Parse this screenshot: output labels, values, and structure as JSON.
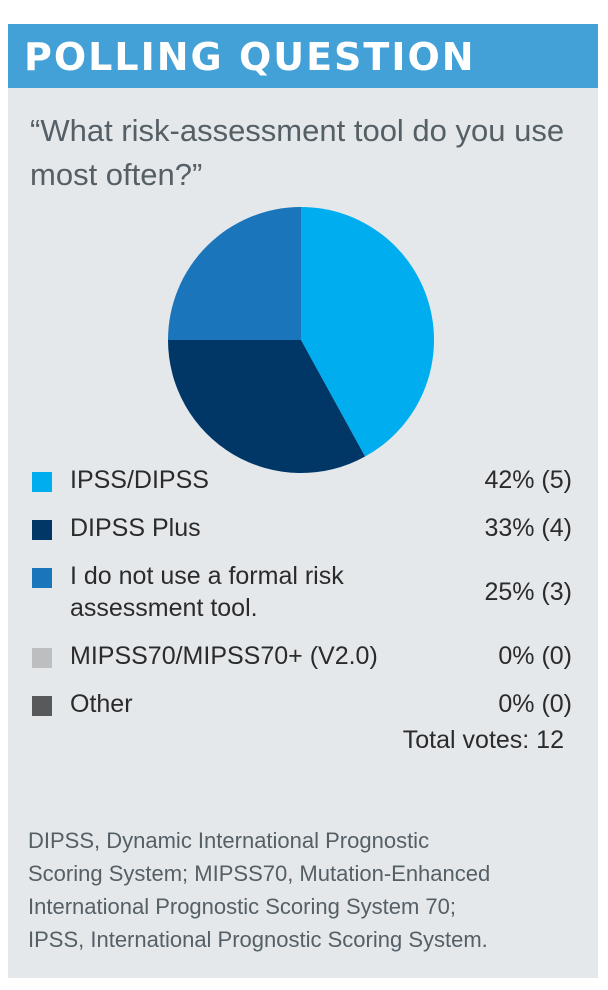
{
  "header": {
    "title": "POLLING QUESTION"
  },
  "question": "“What risk-assessment tool do you use most often?”",
  "chart_data": {
    "type": "pie",
    "categories": [
      "IPSS/DIPSS",
      "DIPSS Plus",
      "I do not use a formal risk assessment tool.",
      "MIPSS70/MIPSS70+ (V2.0)",
      "Other"
    ],
    "values": [
      42,
      33,
      25,
      0,
      0
    ],
    "votes": [
      5,
      4,
      3,
      0,
      0
    ],
    "colors": [
      "#00aeef",
      "#003767",
      "#1b75bb",
      "#bcbec0",
      "#58595b"
    ],
    "labels": [
      "42% (5)",
      "33% (4)",
      "25% (3)",
      "0% (0)",
      "0% (0)"
    ]
  },
  "legend": {
    "items": [
      {
        "label": "IPSS/DIPSS",
        "value": "42% (5)",
        "color": "#00aeef"
      },
      {
        "label": "DIPSS Plus",
        "value": "33% (4)",
        "color": "#003767"
      },
      {
        "label_line1": "I do not use a formal risk",
        "label_line2": "assessment tool.",
        "value": "25% (3)",
        "color": "#1b75bb"
      },
      {
        "label": "MIPSS70/MIPSS70+ (V2.0)",
        "value": "0% (0)",
        "color": "#bcbec0"
      },
      {
        "label": "Other",
        "value": "0% (0)",
        "color": "#58595b"
      }
    ],
    "total": "Total votes: 12"
  },
  "footnote": {
    "line1": "DIPSS, Dynamic International Prognostic",
    "line2": "Scoring System; MIPSS70, Mutation-Enhanced",
    "line3": "International Prognostic Scoring System 70;",
    "line4": "IPSS, International Prognostic Scoring System."
  }
}
